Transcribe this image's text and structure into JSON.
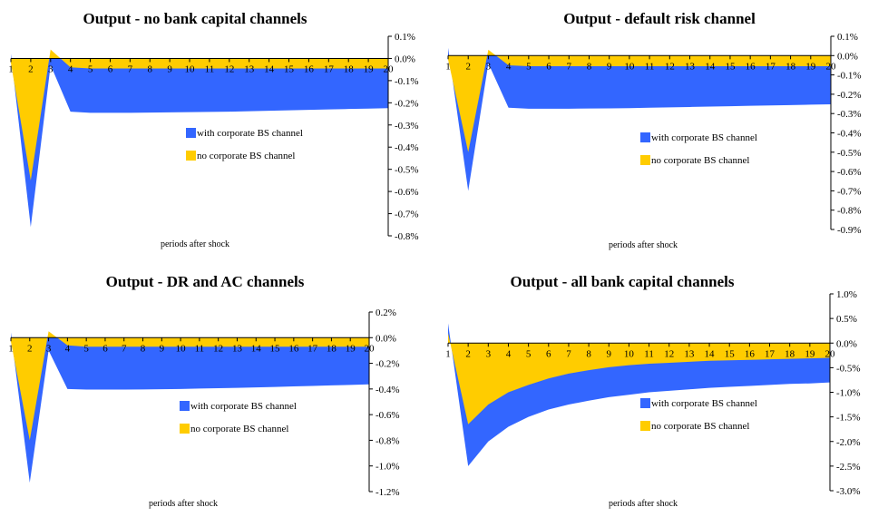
{
  "colors": {
    "blue": "#3366FF",
    "yellow": "#FFCC00",
    "axis": "#000000"
  },
  "chart_data": [
    {
      "type": "area",
      "title": "Output - no bank capital channels",
      "xlabel": "periods after shock",
      "ylabel": "",
      "ylim": [
        -0.8,
        0.1
      ],
      "yticks": [
        0.1,
        0.0,
        -0.1,
        -0.2,
        -0.3,
        -0.4,
        -0.5,
        -0.6,
        -0.7,
        -0.8
      ],
      "ytick_labels": [
        "0.1%",
        "0.0%",
        "-0.1%",
        "-0.2%",
        "-0.3%",
        "-0.4%",
        "-0.5%",
        "-0.6%",
        "-0.7%",
        "-0.8%"
      ],
      "categories": [
        "1",
        "2",
        "3",
        "4",
        "5",
        "6",
        "7",
        "8",
        "9",
        "10",
        "11",
        "12",
        "13",
        "14",
        "15",
        "16",
        "17",
        "18",
        "19",
        "20"
      ],
      "series": [
        {
          "name": "with corporate BS channel",
          "color": "#3366FF",
          "values": [
            0.02,
            -0.76,
            -0.03,
            -0.24,
            -0.245,
            -0.245,
            -0.245,
            -0.244,
            -0.243,
            -0.242,
            -0.241,
            -0.24,
            -0.238,
            -0.236,
            -0.234,
            -0.232,
            -0.23,
            -0.228,
            -0.226,
            -0.224
          ]
        },
        {
          "name": "no corporate BS channel",
          "color": "#FFCC00",
          "values": [
            -0.02,
            -0.55,
            0.04,
            -0.04,
            -0.045,
            -0.045,
            -0.045,
            -0.045,
            -0.045,
            -0.045,
            -0.045,
            -0.045,
            -0.045,
            -0.045,
            -0.045,
            -0.045,
            -0.045,
            -0.045,
            -0.045,
            -0.045
          ]
        }
      ],
      "legend": [
        "with corporate BS channel",
        "no corporate BS channel"
      ]
    },
    {
      "type": "area",
      "title": "Output - default risk channel",
      "xlabel": "periods after shock",
      "ylabel": "",
      "ylim": [
        -0.9,
        0.1
      ],
      "yticks": [
        0.1,
        0.0,
        -0.1,
        -0.2,
        -0.3,
        -0.4,
        -0.5,
        -0.6,
        -0.7,
        -0.8,
        -0.9
      ],
      "ytick_labels": [
        "0.1%",
        "0.0%",
        "-0.1%",
        "-0.2%",
        "-0.3%",
        "-0.4%",
        "-0.5%",
        "-0.6%",
        "-0.7%",
        "-0.8%",
        "-0.9%"
      ],
      "categories": [
        "1",
        "2",
        "3",
        "4",
        "5",
        "6",
        "7",
        "8",
        "9",
        "10",
        "11",
        "12",
        "13",
        "14",
        "15",
        "16",
        "17",
        "18",
        "19",
        "20"
      ],
      "series": [
        {
          "name": "with corporate BS channel",
          "color": "#3366FF",
          "values": [
            0.04,
            -0.7,
            -0.04,
            -0.27,
            -0.275,
            -0.275,
            -0.275,
            -0.274,
            -0.273,
            -0.272,
            -0.27,
            -0.268,
            -0.266,
            -0.264,
            -0.262,
            -0.26,
            -0.258,
            -0.256,
            -0.254,
            -0.252
          ]
        },
        {
          "name": "no corporate BS channel",
          "color": "#FFCC00",
          "values": [
            -0.02,
            -0.5,
            0.03,
            -0.05,
            -0.055,
            -0.055,
            -0.055,
            -0.055,
            -0.055,
            -0.055,
            -0.055,
            -0.055,
            -0.055,
            -0.055,
            -0.055,
            -0.055,
            -0.055,
            -0.055,
            -0.055,
            -0.055
          ]
        }
      ],
      "legend": [
        "with corporate BS channel",
        "no corporate BS channel"
      ]
    },
    {
      "type": "area",
      "title": "Output - DR and AC channels",
      "xlabel": "periods after shock",
      "ylabel": "",
      "ylim": [
        -1.2,
        0.2
      ],
      "yticks": [
        0.2,
        0.0,
        -0.2,
        -0.4,
        -0.6,
        -0.8,
        -1.0,
        -1.2
      ],
      "ytick_labels": [
        "0.2%",
        "0.0%",
        "-0.2%",
        "-0.4%",
        "-0.6%",
        "-0.8%",
        "-1.0%",
        "-1.2%"
      ],
      "categories": [
        "1",
        "2",
        "3",
        "4",
        "5",
        "6",
        "7",
        "8",
        "9",
        "10",
        "11",
        "12",
        "13",
        "14",
        "15",
        "16",
        "17",
        "18",
        "19",
        "20"
      ],
      "series": [
        {
          "name": "with corporate BS channel",
          "color": "#3366FF",
          "values": [
            0.04,
            -1.13,
            -0.1,
            -0.4,
            -0.405,
            -0.405,
            -0.405,
            -0.404,
            -0.402,
            -0.4,
            -0.397,
            -0.394,
            -0.391,
            -0.388,
            -0.384,
            -0.38,
            -0.376,
            -0.372,
            -0.368,
            -0.364
          ]
        },
        {
          "name": "no corporate BS channel",
          "color": "#FFCC00",
          "values": [
            -0.03,
            -0.8,
            0.05,
            -0.06,
            -0.07,
            -0.07,
            -0.07,
            -0.07,
            -0.07,
            -0.07,
            -0.07,
            -0.07,
            -0.07,
            -0.07,
            -0.07,
            -0.07,
            -0.07,
            -0.07,
            -0.07,
            -0.07
          ]
        }
      ],
      "legend": [
        "with corporate BS channel",
        "no corporate BS channel"
      ]
    },
    {
      "type": "area",
      "title": "Output - all bank capital channels",
      "xlabel": "periods after shock",
      "ylabel": "",
      "ylim": [
        -3.0,
        1.0
      ],
      "yticks": [
        1.0,
        0.5,
        0.0,
        -0.5,
        -1.0,
        -1.5,
        -2.0,
        -2.5,
        -3.0
      ],
      "ytick_labels": [
        "1.0%",
        "0.5%",
        "0.0%",
        "-0.5%",
        "-1.0%",
        "-1.5%",
        "-2.0%",
        "-2.5%",
        "-3.0%"
      ],
      "categories": [
        "1",
        "2",
        "3",
        "4",
        "5",
        "6",
        "7",
        "8",
        "9",
        "10",
        "11",
        "12",
        "13",
        "14",
        "15",
        "16",
        "17",
        "18",
        "19",
        "20"
      ],
      "series": [
        {
          "name": "with corporate BS channel",
          "color": "#3366FF",
          "values": [
            0.4,
            -2.5,
            -2.0,
            -1.7,
            -1.5,
            -1.35,
            -1.25,
            -1.17,
            -1.1,
            -1.05,
            -1.0,
            -0.97,
            -0.94,
            -0.91,
            -0.89,
            -0.87,
            -0.85,
            -0.83,
            -0.82,
            -0.8
          ]
        },
        {
          "name": "no corporate BS channel",
          "color": "#FFCC00",
          "values": [
            0.2,
            -1.65,
            -1.25,
            -1.0,
            -0.85,
            -0.72,
            -0.62,
            -0.55,
            -0.49,
            -0.45,
            -0.42,
            -0.4,
            -0.38,
            -0.36,
            -0.35,
            -0.34,
            -0.33,
            -0.32,
            -0.31,
            -0.3
          ]
        }
      ],
      "legend": [
        "with corporate BS channel",
        "no corporate BS channel"
      ]
    }
  ]
}
